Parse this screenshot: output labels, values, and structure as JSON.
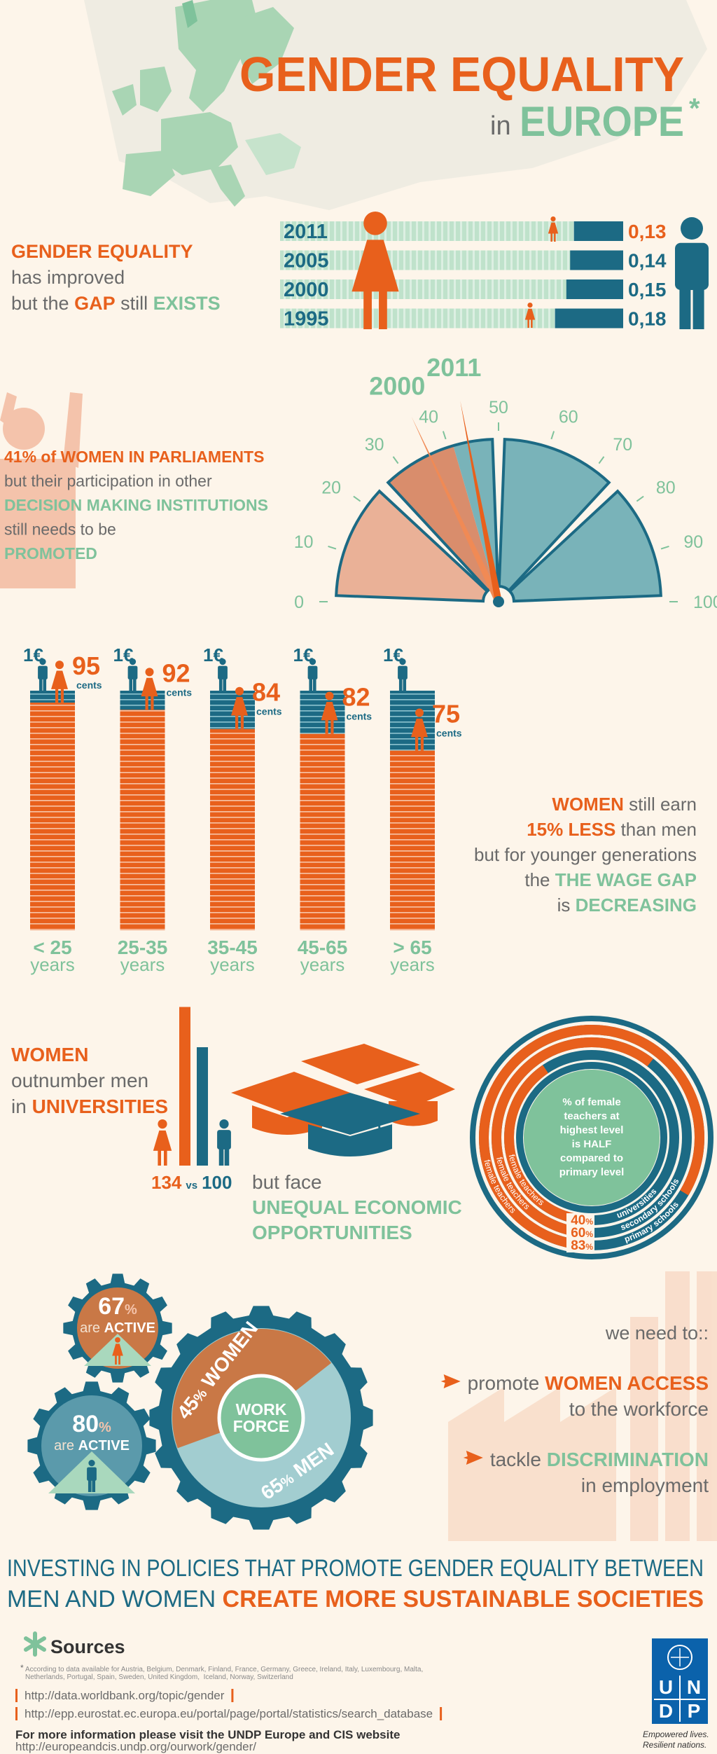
{
  "header": {
    "title": "GENDER EQUALITY",
    "prefix": "in",
    "region": "EUROPE",
    "mark": "*"
  },
  "gap": {
    "text": [
      [
        {
          "text": "GENDER EQUALITY",
          "color": "#e8601c"
        }
      ],
      [
        {
          "text": "has improved"
        }
      ],
      [
        {
          "text": "but the "
        },
        {
          "text": "GAP",
          "color": "#e8601c"
        },
        {
          "text": " still "
        },
        {
          "text": "EXISTS",
          "color": "#7fc29b"
        }
      ]
    ],
    "categories": [
      "2011",
      "2005",
      "2000",
      "1995"
    ],
    "values": [
      0.13,
      0.14,
      0.15,
      0.18
    ],
    "value_labels": [
      "0,13",
      "0,14",
      "0,15",
      "0,18"
    ],
    "color": "#1c6a84"
  },
  "parliament": {
    "text": [
      [
        {
          "text": "41%",
          "color": "#e8601c"
        },
        {
          "text": " of WOMEN IN PARLIAMENTS",
          "color": "#e8601c"
        }
      ],
      [
        {
          "text": "but their participation in other"
        }
      ],
      [
        {
          "text": "DECISION MAKING INSTITUTIONS",
          "color": "#7fc29b"
        }
      ],
      [
        {
          "text": "still needs to be"
        }
      ],
      [
        {
          "text": "PROMOTED",
          "color": "#7fc29b"
        }
      ]
    ],
    "value": 41,
    "lim": [
      0,
      100
    ],
    "ticks": [
      0,
      10,
      20,
      30,
      40,
      50,
      60,
      70,
      80,
      90,
      100
    ],
    "needles": [
      {
        "label": "2000",
        "value": 36
      },
      {
        "label": "2011",
        "value": 44
      }
    ]
  },
  "wage": {
    "euro": "1€",
    "cents": "cents",
    "categories": [
      "< 25",
      "25-35",
      "35-45",
      "45-65",
      "> 65"
    ],
    "years": "years",
    "values": [
      95,
      92,
      84,
      82,
      75
    ],
    "text": [
      [
        {
          "text": "WOMEN",
          "color": "#e8601c"
        },
        {
          "text": " still earn"
        }
      ],
      [
        {
          "text": "15% LESS",
          "color": "#e8601c"
        },
        {
          "text": " than men"
        }
      ],
      [
        {
          "text": "but for younger generations"
        }
      ],
      [
        {
          "text": "the "
        },
        {
          "text": "THE WAGE GAP",
          "color": "#7fc29b"
        }
      ],
      [
        {
          "text": "is "
        },
        {
          "text": "DECREASING",
          "color": "#7fc29b"
        }
      ]
    ]
  },
  "universities": {
    "text": [
      [
        {
          "text": "WOMEN",
          "color": "#e8601c"
        }
      ],
      [
        {
          "text": "outnumber men"
        }
      ],
      [
        {
          "text": "in "
        },
        {
          "text": "UNIVERSITIES",
          "color": "#e8601c"
        }
      ]
    ],
    "values": [
      134,
      100
    ],
    "vs": "vs",
    "text2": [
      [
        {
          "text": "but face"
        }
      ],
      [
        {
          "text": "UNEQUAL ECONOMIC",
          "color": "#7fc29b"
        }
      ],
      [
        {
          "text": "OPPORTUNITIES",
          "color": "#7fc29b"
        }
      ]
    ]
  },
  "teachers": {
    "center": [
      "% of female",
      "teachers at",
      "highest level",
      "is HALF",
      "compared to",
      "primary level"
    ],
    "categories": [
      "universities",
      "secondary schools",
      "primary schools"
    ],
    "values": [
      40,
      60,
      83
    ],
    "unit": "%",
    "ring_label": "female teachers"
  },
  "workforce": {
    "active": [
      {
        "value": 67,
        "unit": "%",
        "text": "are ",
        "strong": "ACTIVE"
      },
      {
        "value": 80,
        "unit": "%",
        "text": "are ",
        "strong": "ACTIVE"
      }
    ],
    "share": [
      {
        "value": 45,
        "unit": "%",
        "name": "WOMEN"
      },
      {
        "value": 65,
        "unit": "%",
        "name": "MEN"
      }
    ],
    "center": [
      "WORK",
      "FORCE"
    ]
  },
  "needs": {
    "title": "we need to::",
    "items": [
      [
        [
          {
            "text": "promote "
          },
          {
            "text": "WOMEN ACCESS",
            "color": "#e8601c"
          }
        ],
        [
          {
            "text": "to the workforce"
          }
        ]
      ],
      [
        [
          {
            "text": "tackle "
          },
          {
            "text": "DISCRIMINATION",
            "color": "#7fc29b"
          }
        ],
        [
          {
            "text": "in employment"
          }
        ]
      ]
    ]
  },
  "footer": {
    "statement": [
      [
        {
          "text": "INVESTING IN POLICIES THAT PROMOTE GENDER EQUALITY BETWEEN"
        }
      ],
      [
        {
          "text": "MEN AND WOMEN "
        },
        {
          "text": "CREATE MORE SUSTAINABLE SOCIETIES",
          "color": "#e8601c"
        }
      ]
    ],
    "sources": "Sources",
    "note": [
      "According to data available for Austria, Belgium, Denmark, Finland, France, Germany, Greece, Ireland, Italy, Luxembourg, Malta,",
      "Netherlands, Portugal, Spain, Sweden, United Kingdom,  Iceland, Norway, Switzerland"
    ],
    "links": [
      "http://data.worldbank.org/topic/gender",
      "http://epp.eurostat.ec.europa.eu/portal/page/portal/statistics/search_database"
    ],
    "more": "For more information please visit the UNDP Europe and CIS website",
    "url": "http://europeandcis.undp.org/ourwork/gender/",
    "logo": [
      "U",
      "N",
      "D",
      "P"
    ],
    "tagline": [
      "Empowered lives.",
      "Resilient nations."
    ]
  }
}
